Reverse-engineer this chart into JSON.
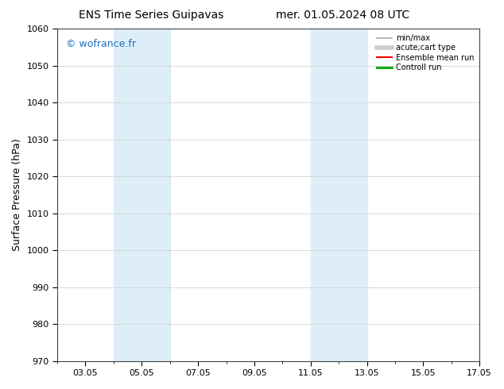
{
  "title_left": "ENS Time Series Guipavas",
  "title_right": "mer. 01.05.2024 08 UTC",
  "ylabel": "Surface Pressure (hPa)",
  "ylim": [
    970,
    1060
  ],
  "yticks": [
    970,
    980,
    990,
    1000,
    1010,
    1020,
    1030,
    1040,
    1050,
    1060
  ],
  "x_min": 2.0,
  "x_max": 17.0,
  "xtick_labels": [
    "03.05",
    "05.05",
    "07.05",
    "09.05",
    "11.05",
    "13.05",
    "15.05",
    "17.05"
  ],
  "xtick_positions": [
    3,
    5,
    7,
    9,
    11,
    13,
    15,
    17
  ],
  "minor_xtick_positions": [
    2,
    3,
    4,
    5,
    6,
    7,
    8,
    9,
    10,
    11,
    12,
    13,
    14,
    15,
    16,
    17
  ],
  "shaded_bands": [
    {
      "x_start": 4.0,
      "x_end": 6.0
    },
    {
      "x_start": 11.0,
      "x_end": 12.0
    },
    {
      "x_start": 12.0,
      "x_end": 13.0
    }
  ],
  "shaded_color": "#ddeef8",
  "watermark": "© wofrance.fr",
  "watermark_color": "#1a6fbf",
  "legend_items": [
    {
      "label": "min/max",
      "color": "#aaaaaa",
      "lw": 1.2,
      "style": "-"
    },
    {
      "label": "acute;cart type",
      "color": "#cccccc",
      "lw": 4,
      "style": "-"
    },
    {
      "label": "Ensemble mean run",
      "color": "#ff0000",
      "lw": 1.5,
      "style": "-"
    },
    {
      "label": "Controll run",
      "color": "#00aa00",
      "lw": 2,
      "style": "-"
    }
  ],
  "background_color": "#ffffff",
  "grid_color": "#cccccc",
  "spine_color": "#444444",
  "title_fontsize": 10,
  "tick_fontsize": 8,
  "ylabel_fontsize": 9,
  "watermark_fontsize": 9
}
